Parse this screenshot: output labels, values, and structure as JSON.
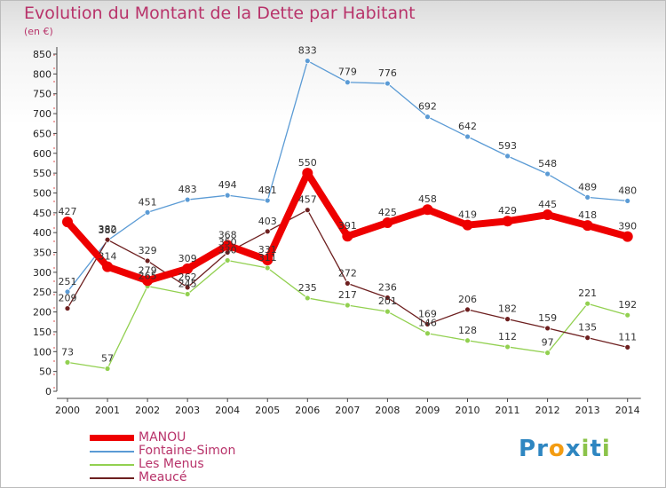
{
  "title": "Evolution du Montant de la Dette par Habitant",
  "unit": "(en €)",
  "brand": {
    "text": "Proxiti",
    "colors": [
      "#2e86c1",
      "#2e86c1",
      "#f39c12",
      "#2e86c1",
      "#8bc34a",
      "#2e86c1",
      "#8bc34a"
    ]
  },
  "chart_data": {
    "type": "line",
    "x": [
      "2000",
      "2001",
      "2002",
      "2003",
      "2004",
      "2005",
      "2006",
      "2007",
      "2008",
      "2009",
      "2010",
      "2011",
      "2012",
      "2013",
      "2014"
    ],
    "ylim": [
      0,
      850
    ],
    "yticks": [
      0,
      50,
      100,
      150,
      200,
      250,
      300,
      350,
      400,
      450,
      500,
      550,
      600,
      650,
      700,
      750,
      800,
      850
    ],
    "grid": false,
    "legend_position": "bottom-left",
    "series": [
      {
        "name": "MANOU",
        "color": "#ee0000",
        "emphasis": true,
        "values": [
          427,
          314,
          279,
          309,
          368,
          331,
          550,
          391,
          425,
          458,
          419,
          429,
          445,
          418,
          390
        ]
      },
      {
        "name": "Fontaine-Simon",
        "color": "#5b9bd5",
        "values": [
          251,
          380,
          451,
          483,
          494,
          481,
          833,
          779,
          776,
          692,
          642,
          593,
          548,
          489,
          480
        ]
      },
      {
        "name": "Les Menus",
        "color": "#92d050",
        "values": [
          73,
          57,
          265,
          245,
          330,
          311,
          235,
          217,
          201,
          146,
          128,
          112,
          97,
          221,
          192
        ]
      },
      {
        "name": "Meaucé",
        "color": "#6d1f1f",
        "values": [
          209,
          382,
          329,
          262,
          350,
          403,
          457,
          272,
          236,
          169,
          206,
          182,
          159,
          135,
          111
        ]
      }
    ]
  }
}
